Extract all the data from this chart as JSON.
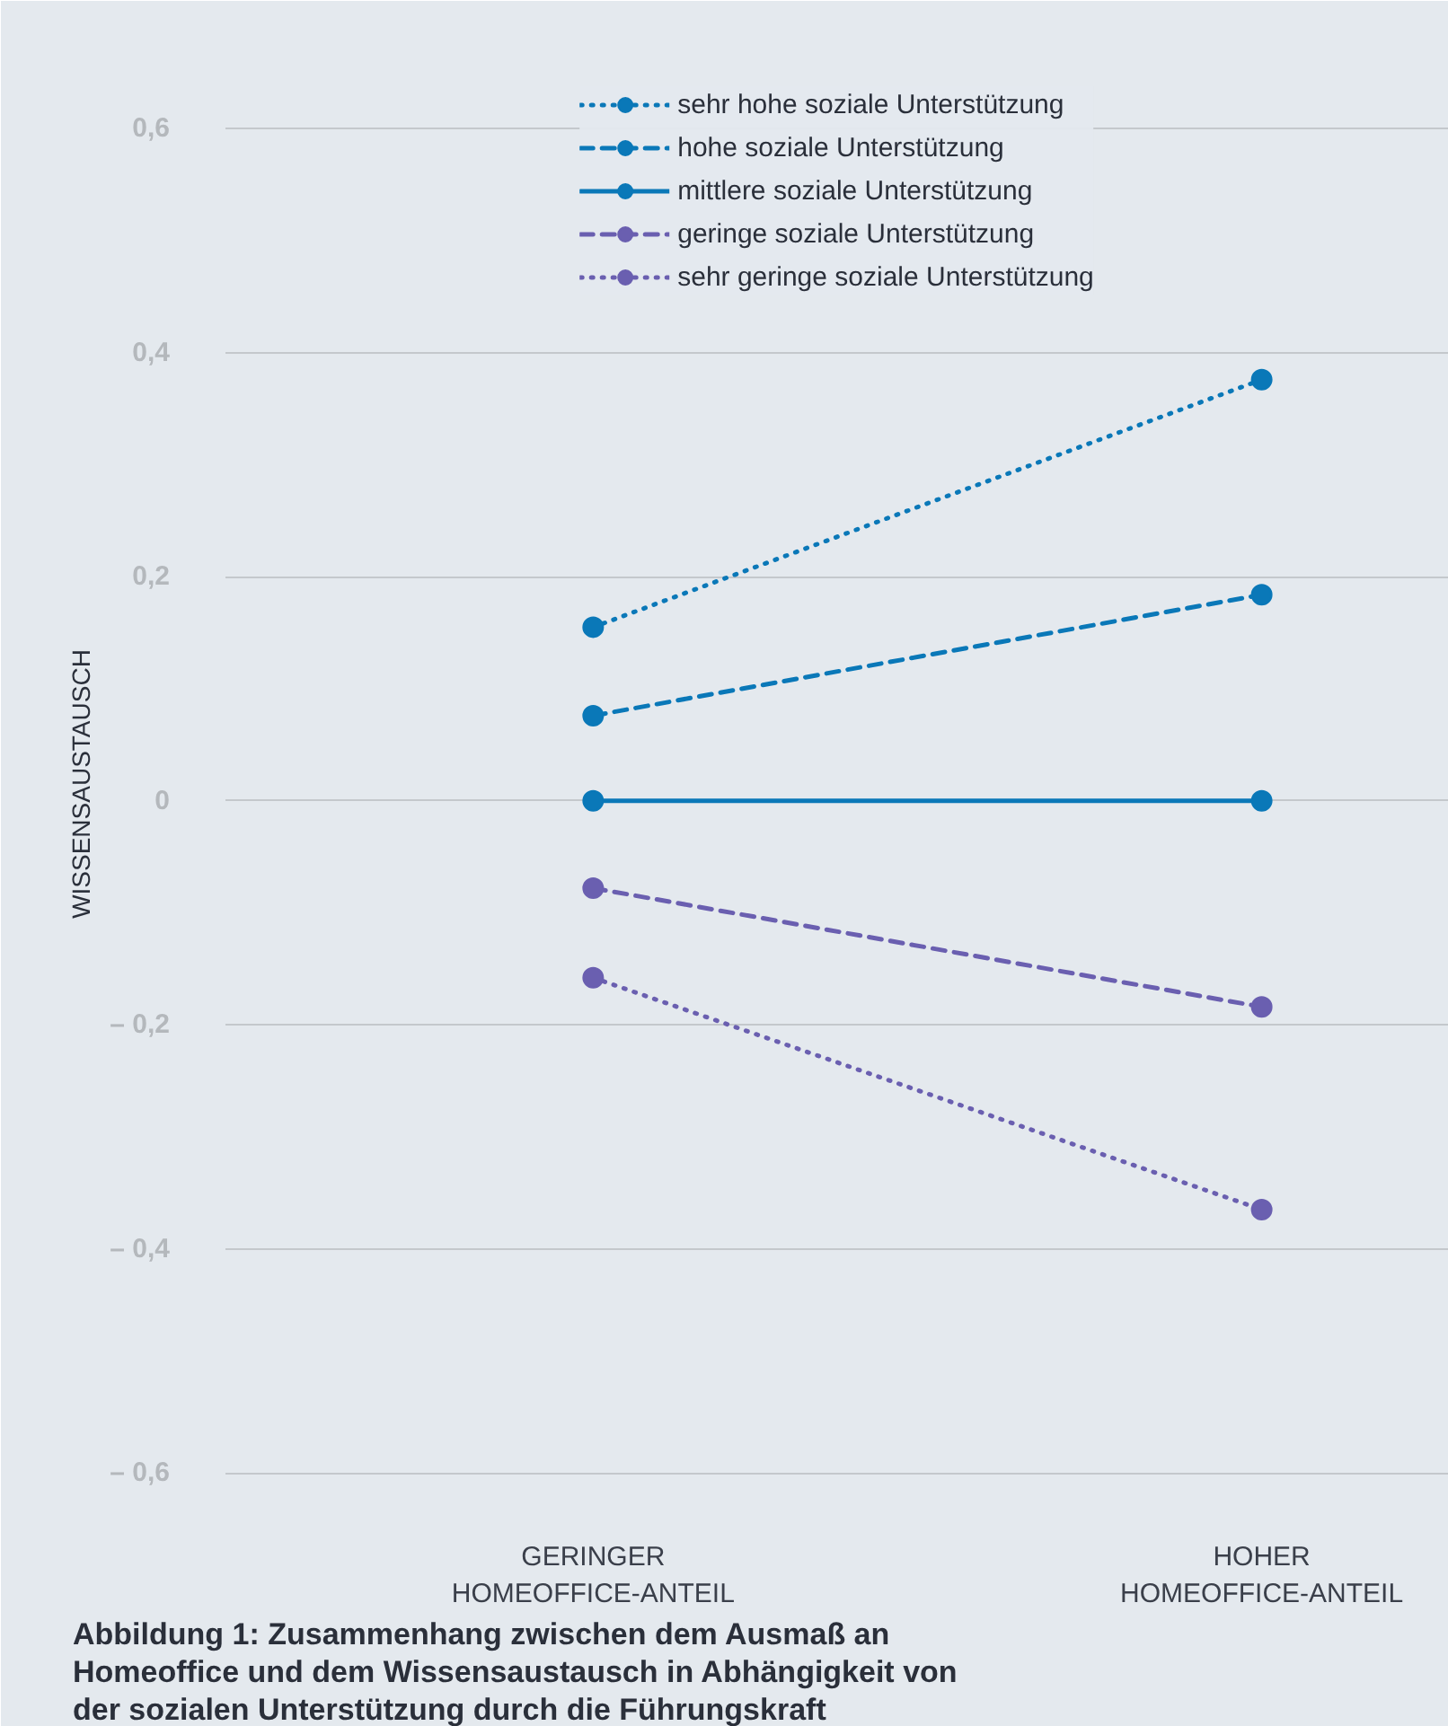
{
  "chart_data": {
    "type": "line",
    "title": "Abbildung 1: Zusammenhang zwischen dem Ausmaß an Homeoffice und dem Wissensaustausch in Abhängigkeit von der sozialen Unterstützung durch die Führungskraft",
    "ylabel": "WISSENSAUSTAUSCH",
    "categories": [
      "GERINGER HOMEOFFICE-ANTEIL",
      "HOHER HOMEOFFICE-ANTEIL"
    ],
    "series": [
      {
        "name": "sehr hohe soziale Unterstützung",
        "color": "#0a78b8",
        "line_style": "dotted",
        "values": [
          0.155,
          0.376
        ]
      },
      {
        "name": "hohe soziale Unterstützung",
        "color": "#0a78b8",
        "line_style": "dashed",
        "values": [
          0.076,
          0.184
        ]
      },
      {
        "name": "mittlere soziale Unterstützung",
        "color": "#0a78b8",
        "line_style": "solid",
        "values": [
          0,
          0
        ]
      },
      {
        "name": "geringe soziale Unterstützung",
        "color": "#6a5fb0",
        "line_style": "dashed",
        "values": [
          -0.078,
          -0.184
        ]
      },
      {
        "name": "sehr geringe soziale Unterstützung",
        "color": "#6a5fb0",
        "line_style": "dotted",
        "values": [
          -0.158,
          -0.365
        ]
      }
    ],
    "ylim": [
      -0.62,
      0.65
    ],
    "yticks": [
      {
        "value": -0.6,
        "label": "– 0,6"
      },
      {
        "value": -0.4,
        "label": "– 0,4"
      },
      {
        "value": -0.2,
        "label": "– 0,2"
      },
      0,
      {
        "value": 0.2,
        "label": "0,2"
      },
      {
        "value": 0.4,
        "label": "0,4"
      },
      {
        "value": 0.6,
        "label": "0,6"
      }
    ],
    "grid": "y",
    "legend": "top",
    "marker": "circle"
  }
}
